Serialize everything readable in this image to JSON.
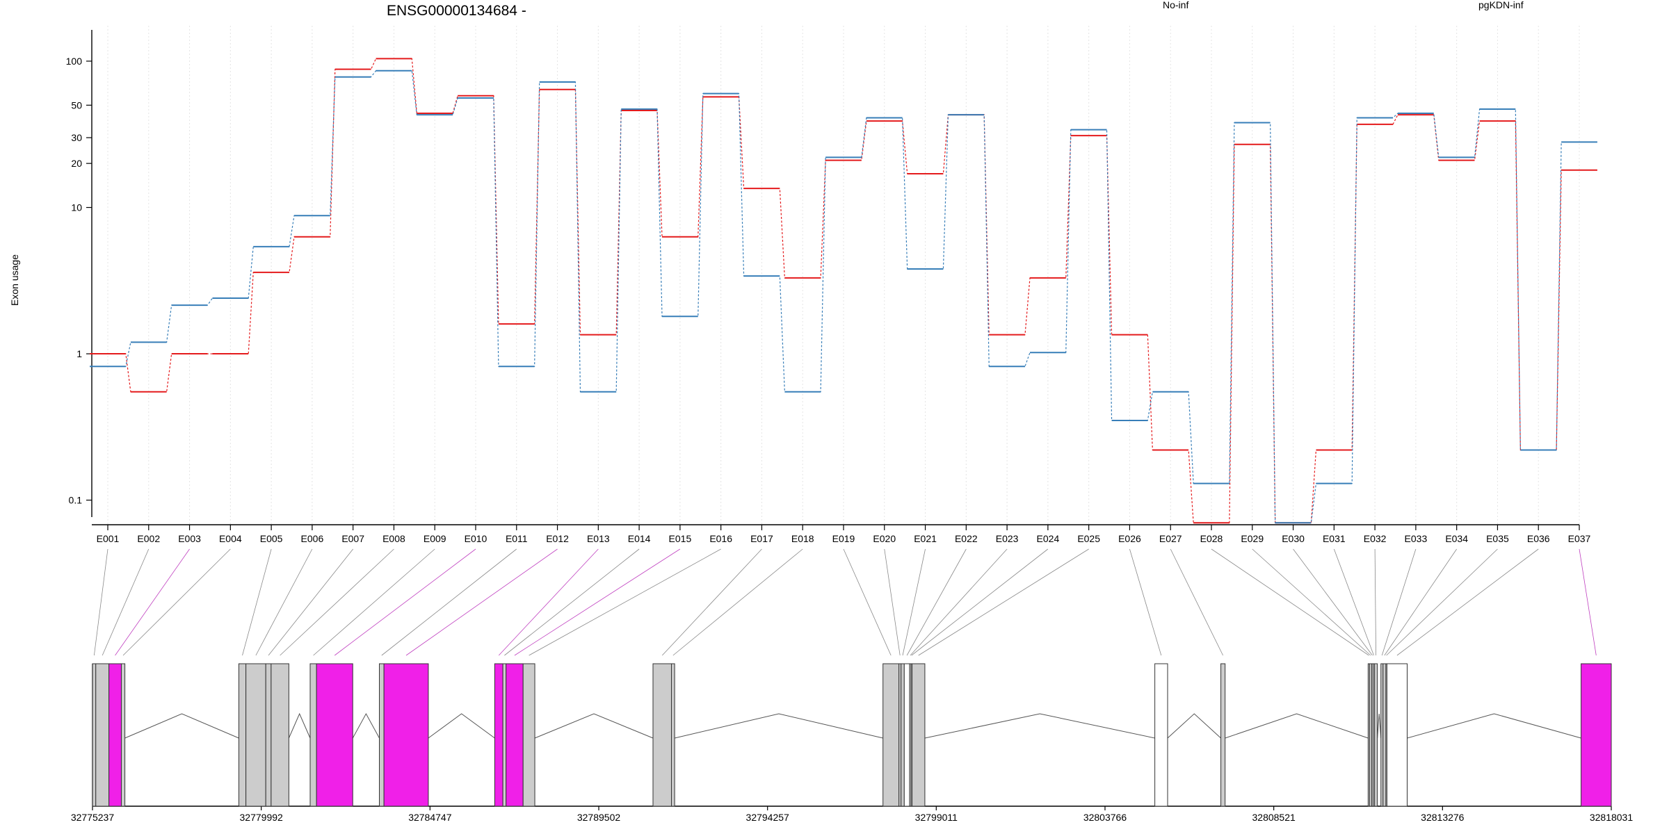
{
  "chart_data": {
    "type": "line",
    "title": "ENSG00000134684 -",
    "ylabel": "Exon usage",
    "yscale": "log",
    "ylim": [
      0.08,
      160
    ],
    "y_ticks": [
      0.1,
      1,
      10,
      20,
      30,
      50,
      100
    ],
    "y_tick_labels": [
      "0.1",
      "1",
      "10",
      "20",
      "30",
      "50",
      "100"
    ],
    "categories": [
      "E001",
      "E002",
      "E003",
      "E004",
      "E005",
      "E006",
      "E007",
      "E008",
      "E009",
      "E010",
      "E011",
      "E012",
      "E013",
      "E014",
      "E015",
      "E016",
      "E017",
      "E018",
      "E019",
      "E020",
      "E021",
      "E022",
      "E023",
      "E024",
      "E025",
      "E026",
      "E027",
      "E028",
      "E029",
      "E030",
      "E031",
      "E032",
      "E033",
      "E034",
      "E035",
      "E036",
      "E037"
    ],
    "series": [
      {
        "name": "No-inf",
        "color": "#e41a1c",
        "values": [
          1.0,
          0.55,
          1.0,
          1.0,
          3.6,
          6.3,
          88,
          104,
          44,
          58,
          1.6,
          64,
          1.35,
          46,
          6.3,
          57,
          13.5,
          3.3,
          21,
          39,
          17,
          43,
          1.35,
          3.3,
          31,
          1.35,
          0.22,
          0.07,
          27,
          0.07,
          0.22,
          37,
          43,
          21,
          39,
          0.22,
          18
        ]
      },
      {
        "name": "pgKDN-inf",
        "color": "#377eb8",
        "values": [
          0.82,
          1.2,
          2.15,
          2.4,
          5.4,
          8.8,
          78,
          86,
          43,
          56,
          0.82,
          72,
          0.55,
          47,
          1.8,
          60,
          3.4,
          0.55,
          22,
          41,
          3.8,
          43,
          0.82,
          1.02,
          34,
          0.35,
          0.55,
          0.13,
          38,
          0.07,
          0.13,
          41,
          44,
          22,
          47,
          0.22,
          28
        ]
      }
    ],
    "gene_model": {
      "coordinate_ticks": [
        "32775237",
        "32779992",
        "32784747",
        "32789502",
        "32794257",
        "32799011",
        "32803766",
        "32808521",
        "32813276",
        "32818031"
      ],
      "exons": [
        {
          "id": "E001",
          "start": 32775237,
          "end": 32775330,
          "highlight": false
        },
        {
          "id": "E002",
          "start": 32775330,
          "end": 32775700,
          "highlight": false
        },
        {
          "id": "E003",
          "start": 32775700,
          "end": 32776050,
          "highlight": true
        },
        {
          "id": "E004",
          "start": 32776050,
          "end": 32776150,
          "highlight": false
        },
        {
          "id": "E005",
          "start": 32779360,
          "end": 32779560,
          "highlight": false
        },
        {
          "id": "E006",
          "start": 32779560,
          "end": 32780120,
          "highlight": false
        },
        {
          "id": "E007",
          "start": 32780120,
          "end": 32780270,
          "highlight": false
        },
        {
          "id": "E008",
          "start": 32780270,
          "end": 32780770,
          "highlight": false
        },
        {
          "id": "E009",
          "start": 32781370,
          "end": 32781550,
          "highlight": false
        },
        {
          "id": "E010",
          "start": 32781550,
          "end": 32782570,
          "highlight": true
        },
        {
          "id": "E011",
          "start": 32783320,
          "end": 32783450,
          "highlight": false
        },
        {
          "id": "E012",
          "start": 32783450,
          "end": 32784700,
          "highlight": true
        },
        {
          "id": "E013",
          "start": 32786570,
          "end": 32786800,
          "highlight": true
        },
        {
          "id": "E014",
          "start": 32786800,
          "end": 32786890,
          "highlight": false
        },
        {
          "id": "E015",
          "start": 32786890,
          "end": 32787370,
          "highlight": true
        },
        {
          "id": "E016",
          "start": 32787370,
          "end": 32787700,
          "highlight": false
        },
        {
          "id": "E017",
          "start": 32791030,
          "end": 32791550,
          "highlight": false
        },
        {
          "id": "E018",
          "start": 32791550,
          "end": 32791640,
          "highlight": false
        },
        {
          "id": "E019",
          "start": 32797510,
          "end": 32797960,
          "highlight": false
        },
        {
          "id": "E020",
          "start": 32797960,
          "end": 32798020,
          "highlight": false
        },
        {
          "id": "E021",
          "start": 32798020,
          "end": 32798110,
          "highlight": false
        },
        {
          "id": "E022",
          "start": 32798110,
          "end": 32798260,
          "highlight": false
        },
        {
          "id": "E023",
          "start": 32798260,
          "end": 32798300,
          "highlight": false
        },
        {
          "id": "E024",
          "start": 32798300,
          "end": 32798330,
          "highlight": false
        },
        {
          "id": "E025",
          "start": 32798330,
          "end": 32798690,
          "highlight": false
        },
        {
          "id": "E026",
          "start": 32805170,
          "end": 32805530,
          "highlight": false
        },
        {
          "id": "E027",
          "start": 32807030,
          "end": 32807150,
          "highlight": false
        },
        {
          "id": "E028",
          "start": 32811180,
          "end": 32811220,
          "highlight": false
        },
        {
          "id": "E029",
          "start": 32811220,
          "end": 32811280,
          "highlight": false
        },
        {
          "id": "E030",
          "start": 32811280,
          "end": 32811320,
          "highlight": false
        },
        {
          "id": "E031",
          "start": 32811320,
          "end": 32811360,
          "highlight": false
        },
        {
          "id": "E032",
          "start": 32811360,
          "end": 32811440,
          "highlight": false
        },
        {
          "id": "E033",
          "start": 32811540,
          "end": 32811600,
          "highlight": false
        },
        {
          "id": "E034",
          "start": 32811600,
          "end": 32811680,
          "highlight": false
        },
        {
          "id": "E035",
          "start": 32811680,
          "end": 32811710,
          "highlight": false
        },
        {
          "id": "E036",
          "start": 32811710,
          "end": 32812280,
          "highlight": false
        },
        {
          "id": "E037",
          "start": 32817180,
          "end": 32818031,
          "highlight": true
        }
      ],
      "colors": {
        "exon": "#cccccc",
        "highlight": "#f020e8",
        "outline": "#333333",
        "unexpressed": "#ffffff"
      }
    }
  }
}
